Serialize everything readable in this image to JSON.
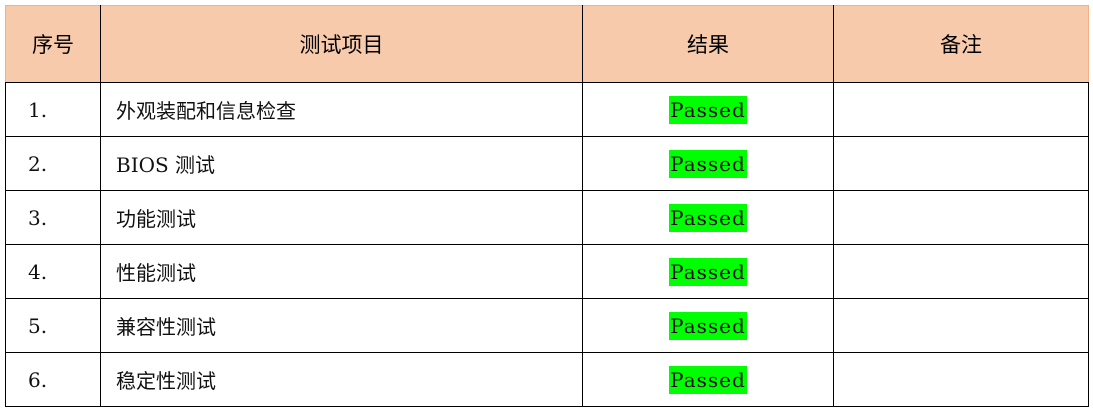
{
  "table": {
    "headers": [
      "序号",
      "测试项目",
      "结果",
      "备注"
    ],
    "rows": [
      {
        "no": "1.",
        "item": "外观装配和信息检查",
        "result": "Passed",
        "note": ""
      },
      {
        "no": "2.",
        "item": "BIOS 测试",
        "result": "Passed",
        "note": ""
      },
      {
        "no": "3.",
        "item": "功能测试",
        "result": "Passed",
        "note": ""
      },
      {
        "no": "4.",
        "item": "性能测试",
        "result": "Passed",
        "note": ""
      },
      {
        "no": "5.",
        "item": "兼容性测试",
        "result": "Passed",
        "note": ""
      },
      {
        "no": "6.",
        "item": "稳定性测试",
        "result": "Passed",
        "note": ""
      }
    ]
  },
  "colors": {
    "header_bg": "#f7caac",
    "passed_highlight": "#00ff00"
  }
}
